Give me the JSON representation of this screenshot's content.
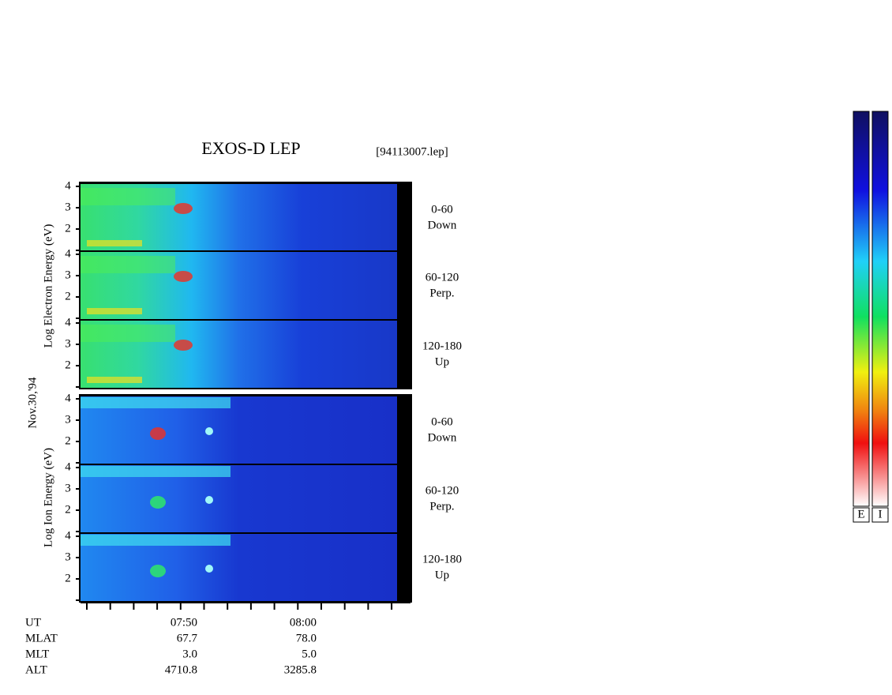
{
  "title": "EXOS-D LEP",
  "file": "[94113007.lep]",
  "date": "Nov.30,'94",
  "electron_axis_label": "Log Electron Energy (eV)",
  "ion_axis_label": "Log Ion Energy (eV)",
  "y_ticks": [
    "4",
    "3",
    "2"
  ],
  "panels": [
    {
      "range": "0-60",
      "direction": "Down"
    },
    {
      "range": "60-120",
      "direction": "Perp."
    },
    {
      "range": "120-180",
      "direction": "Up"
    },
    {
      "range": "0-60",
      "direction": "Down"
    },
    {
      "range": "60-120",
      "direction": "Perp."
    },
    {
      "range": "120-180",
      "direction": "Up"
    }
  ],
  "time_table": {
    "rows": [
      [
        "UT",
        "07:50",
        "08:00"
      ],
      [
        "MLAT",
        "67.7",
        "78.0"
      ],
      [
        "MLT",
        "3.0",
        "5.0"
      ],
      [
        "ALT",
        "4710.8",
        "3285.8"
      ]
    ]
  },
  "colorbar": {
    "labels": [
      "E",
      "I"
    ]
  }
}
